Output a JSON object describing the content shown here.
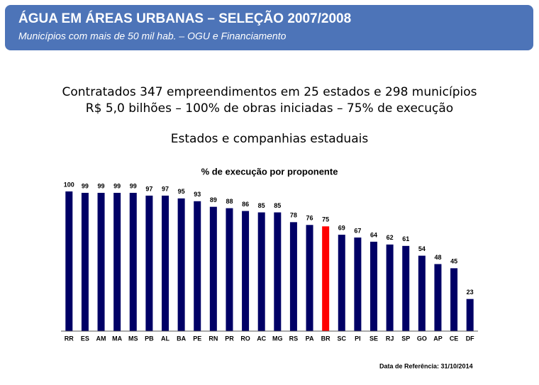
{
  "header": {
    "title": "ÁGUA EM ÁREAS URBANAS – SELEÇÃO 2007/2008",
    "subtitle": "Municípios com mais de 50 mil hab. – OGU e Financiamento"
  },
  "summary": [
    "Contratados  347 empreendimentos em 25 estados e 298 municípios",
    "R$ 5,0 bilhões – 100% de obras iniciadas – 75% de execução"
  ],
  "section_title": "Estados e companhias estaduais",
  "chart_data": {
    "type": "bar",
    "title": "% de execução por proponente",
    "categories": [
      "RR",
      "ES",
      "AM",
      "MA",
      "MS",
      "PB",
      "AL",
      "BA",
      "PE",
      "RN",
      "PR",
      "RO",
      "AC",
      "MG",
      "RS",
      "PA",
      "BR",
      "SC",
      "PI",
      "SE",
      "RJ",
      "SP",
      "GO",
      "AP",
      "CE",
      "DF"
    ],
    "values": [
      100,
      99,
      99,
      99,
      99,
      97,
      97,
      95,
      93,
      89,
      88,
      86,
      85,
      85,
      78,
      76,
      75,
      69,
      67,
      64,
      62,
      61,
      54,
      48,
      45,
      23
    ],
    "colors": [
      "#000066",
      "#000066",
      "#000066",
      "#000066",
      "#000066",
      "#000066",
      "#000066",
      "#000066",
      "#000066",
      "#000066",
      "#000066",
      "#000066",
      "#000066",
      "#000066",
      "#000066",
      "#000066",
      "#ff0000",
      "#000066",
      "#000066",
      "#000066",
      "#000066",
      "#000066",
      "#000066",
      "#000066",
      "#000066",
      "#000066"
    ],
    "ylim": [
      0,
      100
    ]
  },
  "footnote": "Data de Referência: 31/10/2014"
}
